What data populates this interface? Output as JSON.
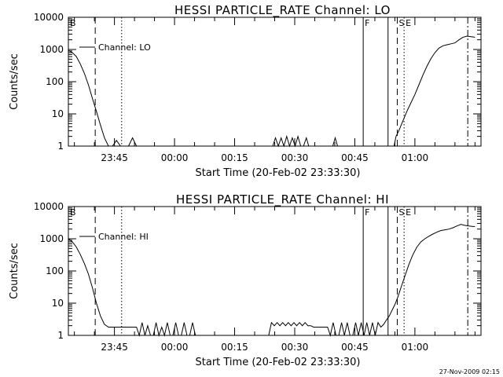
{
  "footer": {
    "timestamp": "27-Nov-2009 02:15"
  },
  "chart_data": [
    {
      "type": "line",
      "title": "HESSI PARTICLE_RATE Channel: LO",
      "xlabel": "Start Time (20-Feb-02 23:33:30)",
      "ylabel": "Counts/sec",
      "y_scale": "log",
      "ylim": [
        1,
        10000
      ],
      "y_ticks": [
        1,
        10,
        100,
        1000,
        10000
      ],
      "y_tick_labels": [
        "1",
        "10",
        "100",
        "1000",
        "10000"
      ],
      "x_unit": "minutes after 20-Feb-02 23:33:30",
      "xlim": [
        0,
        103
      ],
      "x_ticks": [
        11.5,
        26.5,
        41.5,
        56.5,
        71.5,
        86.5
      ],
      "x_tick_labels": [
        "23:45",
        "00:00",
        "00:15",
        "00:30",
        "00:45",
        "01:00"
      ],
      "legend": "top-left",
      "series": [
        {
          "name": "Channel: LO",
          "x": [
            0,
            1,
            2,
            3,
            4,
            5,
            6,
            7,
            8,
            9,
            10,
            11,
            12,
            13,
            14,
            15,
            16,
            17,
            18,
            19,
            20,
            51,
            51.7,
            52.4,
            53.1,
            53.8,
            54.5,
            55.2,
            55.9,
            56.6,
            57.3,
            58,
            58.7,
            59.4,
            60,
            66,
            66.6,
            67.2,
            81.3,
            81.8,
            82.5,
            83.5,
            84.5,
            85.5,
            86.5,
            87.5,
            88.5,
            89.5,
            90.5,
            91.5,
            92.5,
            93.5,
            94.5,
            95.5,
            96.5,
            97.5,
            98.5,
            99.5,
            100.5,
            101.5
          ],
          "y": [
            950,
            800,
            600,
            350,
            180,
            80,
            30,
            12,
            4.5,
            1.8,
            1,
            1,
            1.5,
            1,
            1,
            1,
            1.8,
            1,
            1,
            1,
            1,
            1,
            1.8,
            1,
            1.8,
            1,
            2,
            1,
            1.8,
            1,
            2,
            1,
            1,
            1.8,
            1,
            1,
            1.8,
            1,
            1,
            2,
            3,
            6,
            12,
            22,
            40,
            80,
            160,
            300,
            520,
            800,
            1100,
            1300,
            1400,
            1500,
            1600,
            2000,
            2400,
            2600,
            2500,
            2400
          ]
        }
      ],
      "markers": [
        {
          "label": "B",
          "x": 0,
          "style": "solid"
        },
        {
          "label": "",
          "x": 6.7,
          "style": "dashed"
        },
        {
          "label": "",
          "x": 13.3,
          "style": "dotted"
        },
        {
          "label": "F",
          "x": 73.6,
          "style": "solid"
        },
        {
          "label": "",
          "x": 79.8,
          "style": "solid"
        },
        {
          "label": "S",
          "x": 82.1,
          "style": "dashed"
        },
        {
          "label": "E",
          "x": 83.8,
          "style": "dotted"
        },
        {
          "label": "",
          "x": 99.7,
          "style": "dashdot"
        }
      ]
    },
    {
      "type": "line",
      "title": "HESSI PARTICLE_RATE Channel: HI",
      "xlabel": "Start Time (20-Feb-02 23:33:30)",
      "ylabel": "Counts/sec",
      "y_scale": "log",
      "ylim": [
        1,
        10000
      ],
      "y_ticks": [
        1,
        10,
        100,
        1000,
        10000
      ],
      "y_tick_labels": [
        "1",
        "10",
        "100",
        "1000",
        "10000"
      ],
      "x_unit": "minutes after 20-Feb-02 23:33:30",
      "xlim": [
        0,
        103
      ],
      "x_ticks": [
        11.5,
        26.5,
        41.5,
        56.5,
        71.5,
        86.5
      ],
      "x_tick_labels": [
        "23:45",
        "00:00",
        "00:15",
        "00:30",
        "00:45",
        "01:00"
      ],
      "legend": "top-left",
      "series": [
        {
          "name": "Channel: HI",
          "x": [
            0,
            1,
            2,
            3,
            4,
            5,
            6,
            7,
            8,
            9,
            10,
            11,
            12,
            13,
            14,
            15,
            16,
            17,
            17.7,
            18.4,
            19.1,
            19.8,
            20.5,
            21.2,
            21.9,
            22.6,
            23.3,
            24,
            24.7,
            25.4,
            26.1,
            26.8,
            27.5,
            28.2,
            28.9,
            29.6,
            30.3,
            31,
            31.7,
            32.4,
            33.1,
            33.8,
            34.5,
            35.2,
            35.9,
            36.6,
            37.3,
            38,
            38.7,
            39.4,
            40.1,
            40.8,
            41.5,
            42.2,
            42.9,
            43.6,
            44.3,
            45,
            50,
            50.7,
            51.4,
            52.1,
            52.8,
            53.5,
            54.2,
            54.9,
            55.6,
            56.3,
            57,
            57.7,
            58.4,
            59.1,
            59.8,
            60.5,
            61.2,
            61.9,
            62.6,
            63.3,
            64,
            64.7,
            65.4,
            66.1,
            66.8,
            67.5,
            68.2,
            68.9,
            69.6,
            70.3,
            71,
            71.7,
            72.4,
            73.1,
            73.8,
            74.5,
            75.2,
            75.9,
            76.6,
            77.3,
            78,
            78.7,
            79.4,
            80.1,
            80.8,
            81.5,
            82.2,
            83,
            84,
            85,
            86,
            87,
            88,
            89,
            90,
            91,
            92,
            93,
            94,
            95,
            96,
            97,
            98,
            99,
            100,
            101,
            101.5
          ],
          "y": [
            1000,
            800,
            550,
            320,
            170,
            80,
            30,
            10,
            4,
            2.2,
            1.8,
            1.8,
            1.8,
            1.8,
            1.8,
            1.8,
            1.8,
            1.8,
            1,
            2.5,
            1,
            2,
            1,
            1,
            2.5,
            1,
            1.8,
            1,
            2.5,
            1,
            1,
            2.5,
            1,
            1,
            2.5,
            1,
            1,
            2.5,
            1,
            1,
            1,
            1,
            1,
            1,
            1,
            1,
            1,
            1,
            1,
            1,
            1,
            1,
            1,
            1,
            1,
            1,
            1,
            1,
            1,
            2.5,
            2,
            2.5,
            2,
            2.5,
            2,
            2.5,
            2,
            2.5,
            2,
            2.5,
            2,
            2.5,
            2,
            2,
            1.8,
            1.8,
            1.8,
            1.8,
            1.8,
            1.8,
            1,
            2.5,
            1,
            1,
            2.5,
            1,
            2.5,
            1,
            1,
            2.5,
            1,
            2.5,
            1,
            2.5,
            1,
            2.5,
            1,
            2.5,
            1.8,
            2.2,
            3,
            4,
            6,
            9,
            15,
            30,
            70,
            160,
            320,
            550,
            800,
            1000,
            1200,
            1400,
            1600,
            1800,
            1900,
            2000,
            2200,
            2500,
            2800,
            2600,
            2500,
            2400,
            2400
          ]
        }
      ],
      "markers": [
        {
          "label": "B",
          "x": 0,
          "style": "solid"
        },
        {
          "label": "",
          "x": 6.7,
          "style": "dashed"
        },
        {
          "label": "",
          "x": 13.3,
          "style": "dotted"
        },
        {
          "label": "F",
          "x": 73.6,
          "style": "solid"
        },
        {
          "label": "",
          "x": 79.8,
          "style": "solid"
        },
        {
          "label": "S",
          "x": 82.1,
          "style": "dashed"
        },
        {
          "label": "E",
          "x": 83.8,
          "style": "dotted"
        },
        {
          "label": "",
          "x": 99.7,
          "style": "dashdot"
        }
      ]
    }
  ]
}
